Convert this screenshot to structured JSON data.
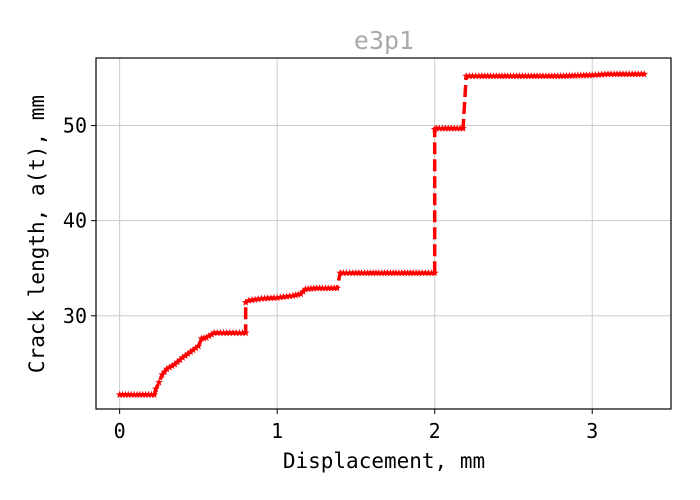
{
  "chart_data": {
    "type": "line",
    "title": "e3p1",
    "xlabel": "Displacement, mm",
    "ylabel": "Crack length, a(t), mm",
    "xlim": [
      -0.15,
      3.5
    ],
    "ylim": [
      20.2,
      57.1
    ],
    "xticks": [
      0,
      1,
      2,
      3
    ],
    "yticks": [
      30,
      40,
      50
    ],
    "grid": true,
    "colors": {
      "line": "#ff0000",
      "title": "#aaaaaa",
      "grid": "#cccccc",
      "axes": "#000000"
    },
    "series": [
      {
        "marker": "star",
        "linestyle": "dashed",
        "x": [
          0.0,
          0.22,
          0.23,
          0.25,
          0.27,
          0.3,
          0.35,
          0.4,
          0.45,
          0.5,
          0.52,
          0.55,
          0.6,
          0.7,
          0.8,
          0.8,
          0.82,
          0.9,
          1.0,
          1.1,
          1.15,
          1.18,
          1.25,
          1.38,
          1.4,
          1.5,
          1.7,
          1.9,
          2.0,
          2.0,
          2.01,
          2.18,
          2.2,
          2.3,
          2.5,
          2.8,
          3.0,
          3.1,
          3.33
        ],
        "y": [
          21.7,
          21.7,
          22.3,
          23.0,
          23.8,
          24.4,
          24.9,
          25.6,
          26.2,
          26.8,
          27.6,
          27.7,
          28.2,
          28.2,
          28.2,
          31.4,
          31.6,
          31.8,
          31.9,
          32.1,
          32.3,
          32.8,
          32.9,
          32.9,
          34.5,
          34.5,
          34.5,
          34.5,
          34.5,
          49.6,
          49.7,
          49.7,
          55.2,
          55.2,
          55.2,
          55.2,
          55.3,
          55.4,
          55.4
        ]
      }
    ]
  }
}
